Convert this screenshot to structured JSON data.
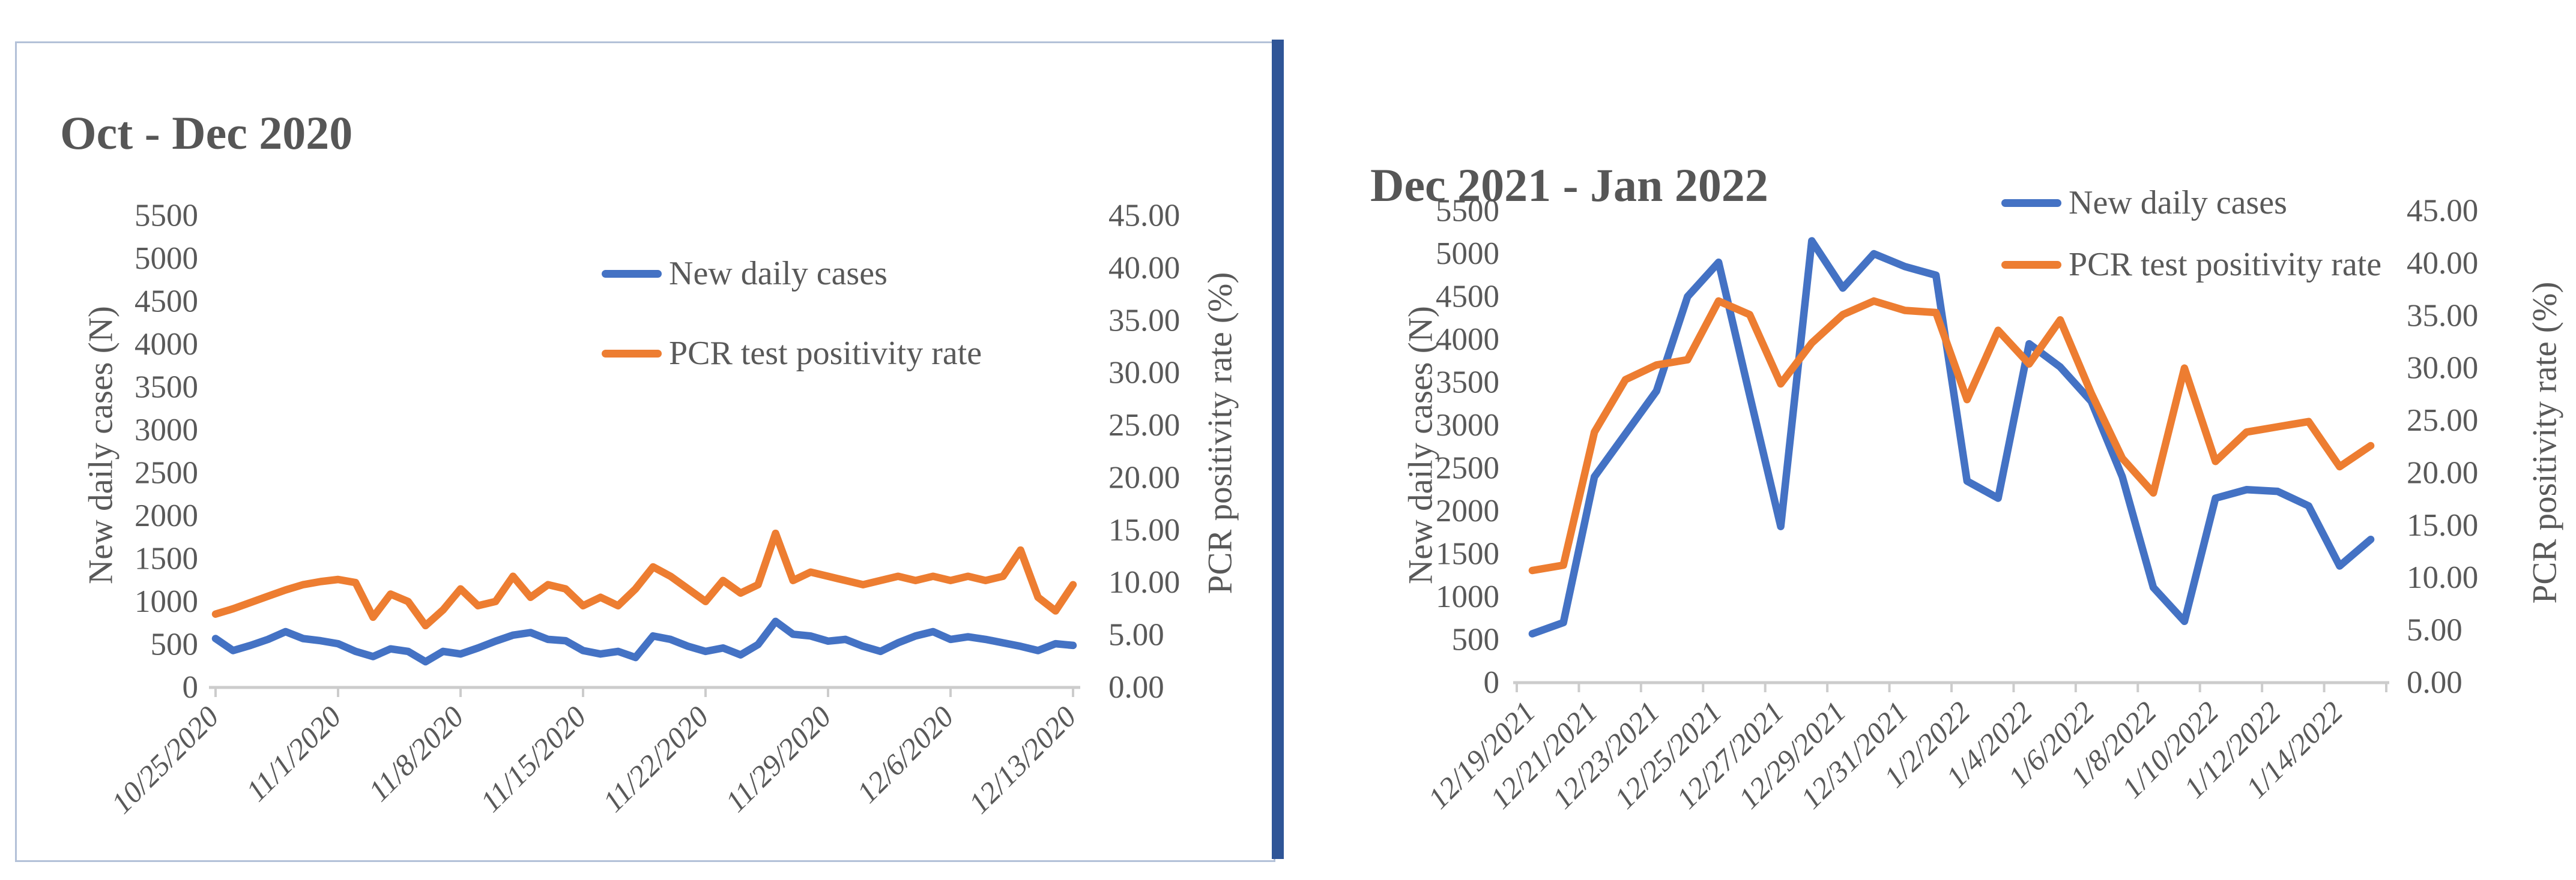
{
  "page": {
    "background": "#ffffff"
  },
  "divider": {
    "color": "#2F5597"
  },
  "style": {
    "text_color": "#595959",
    "axis_line_color": "#cccccc",
    "cases_color": "#4472C4",
    "positivity_color": "#ED7D31",
    "frame_border_color": "#b3c1d8"
  },
  "chart_data": [
    {
      "type": "line",
      "title": "Oct - Dec 2020",
      "ylabel_left": "New daily cases (N)",
      "ylabel_right": "PCR positivity rate (%)",
      "ylim_left": [
        0,
        5500
      ],
      "ylim_right": [
        0,
        45
      ],
      "yticks_left_labels": [
        "0",
        "500",
        "1000",
        "1500",
        "2000",
        "2500",
        "3000",
        "3500",
        "4000",
        "4500",
        "5000",
        "5500"
      ],
      "yticks_right_labels": [
        "0.00",
        "5.00",
        "10.00",
        "15.00",
        "20.00",
        "25.00",
        "30.00",
        "35.00",
        "40.00",
        "45.00"
      ],
      "x_tick_labels": [
        "10/25/2020",
        "11/1/2020",
        "11/8/2020",
        "11/15/2020",
        "11/22/2020",
        "11/29/2020",
        "12/6/2020",
        "12/13/2020"
      ],
      "x_days_per_tick": 7,
      "grid": false,
      "legend_position": "inside-top-center",
      "series": [
        {
          "name": "New daily cases",
          "axis": "left",
          "color": "#4472C4",
          "values": [
            570,
            430,
            490,
            560,
            650,
            570,
            545,
            510,
            420,
            360,
            450,
            420,
            300,
            420,
            390,
            460,
            540,
            610,
            640,
            560,
            545,
            430,
            390,
            420,
            350,
            600,
            560,
            480,
            420,
            460,
            380,
            500,
            770,
            620,
            600,
            540,
            560,
            480,
            420,
            520,
            600,
            650,
            560,
            590,
            560,
            520,
            480,
            430,
            510,
            490
          ]
        },
        {
          "name": "PCR test positivity rate",
          "axis": "right",
          "color": "#ED7D31",
          "values": [
            7.0,
            7.5,
            8.1,
            8.7,
            9.3,
            9.8,
            10.1,
            10.3,
            10.0,
            6.7,
            8.9,
            8.2,
            5.9,
            7.4,
            9.4,
            7.8,
            8.2,
            10.6,
            8.6,
            9.8,
            9.4,
            7.8,
            8.6,
            7.8,
            9.4,
            11.5,
            10.6,
            9.4,
            8.2,
            10.2,
            9.0,
            9.8,
            14.7,
            10.2,
            11.0,
            10.6,
            10.2,
            9.8,
            10.2,
            10.6,
            10.2,
            10.6,
            10.2,
            10.6,
            10.2,
            10.6,
            13.1,
            8.6,
            7.3,
            9.8
          ]
        }
      ]
    },
    {
      "type": "line",
      "title": "Dec 2021 - Jan 2022",
      "ylabel_left": "New daily cases (N)",
      "ylabel_right": "PCR positivity rate (%)",
      "ylim_left": [
        0,
        5500
      ],
      "ylim_right": [
        0,
        45
      ],
      "yticks_left_labels": [
        "0",
        "500",
        "1000",
        "1500",
        "2000",
        "2500",
        "3000",
        "3500",
        "4000",
        "4500",
        "5000",
        "5500"
      ],
      "yticks_right_labels": [
        "0.00",
        "5.00",
        "10.00",
        "15.00",
        "20.00",
        "25.00",
        "30.00",
        "35.00",
        "40.00",
        "45.00"
      ],
      "x_tick_labels": [
        "12/19/2021",
        "12/21/2021",
        "12/23/2021",
        "12/25/2021",
        "12/27/2021",
        "12/29/2021",
        "12/31/2021",
        "1/2/2022",
        "1/4/2022",
        "1/6/2022",
        "1/8/2022",
        "1/10/2022",
        "1/12/2022",
        "1/14/2022"
      ],
      "x_days_per_tick": 2,
      "grid": false,
      "legend_position": "inside-top-right",
      "series": [
        {
          "name": "New daily cases",
          "axis": "left",
          "color": "#4472C4",
          "values": [
            570,
            700,
            2400,
            2900,
            3400,
            4500,
            4900,
            3350,
            1820,
            5150,
            4600,
            5000,
            4850,
            4750,
            2350,
            2150,
            3950,
            3680,
            3280,
            2400,
            1110,
            715,
            2150,
            2250,
            2230,
            2060,
            1360,
            1670
          ]
        },
        {
          "name": "PCR test positivity rate",
          "axis": "right",
          "color": "#ED7D31",
          "values": [
            10.7,
            11.2,
            23.9,
            28.9,
            30.3,
            30.8,
            36.4,
            35.1,
            28.5,
            32.4,
            35.1,
            36.4,
            35.5,
            35.3,
            27.0,
            33.6,
            30.4,
            34.6,
            27.6,
            21.4,
            18.1,
            30.0,
            21.1,
            23.9,
            24.4,
            24.9,
            20.6,
            22.6
          ]
        }
      ]
    }
  ]
}
